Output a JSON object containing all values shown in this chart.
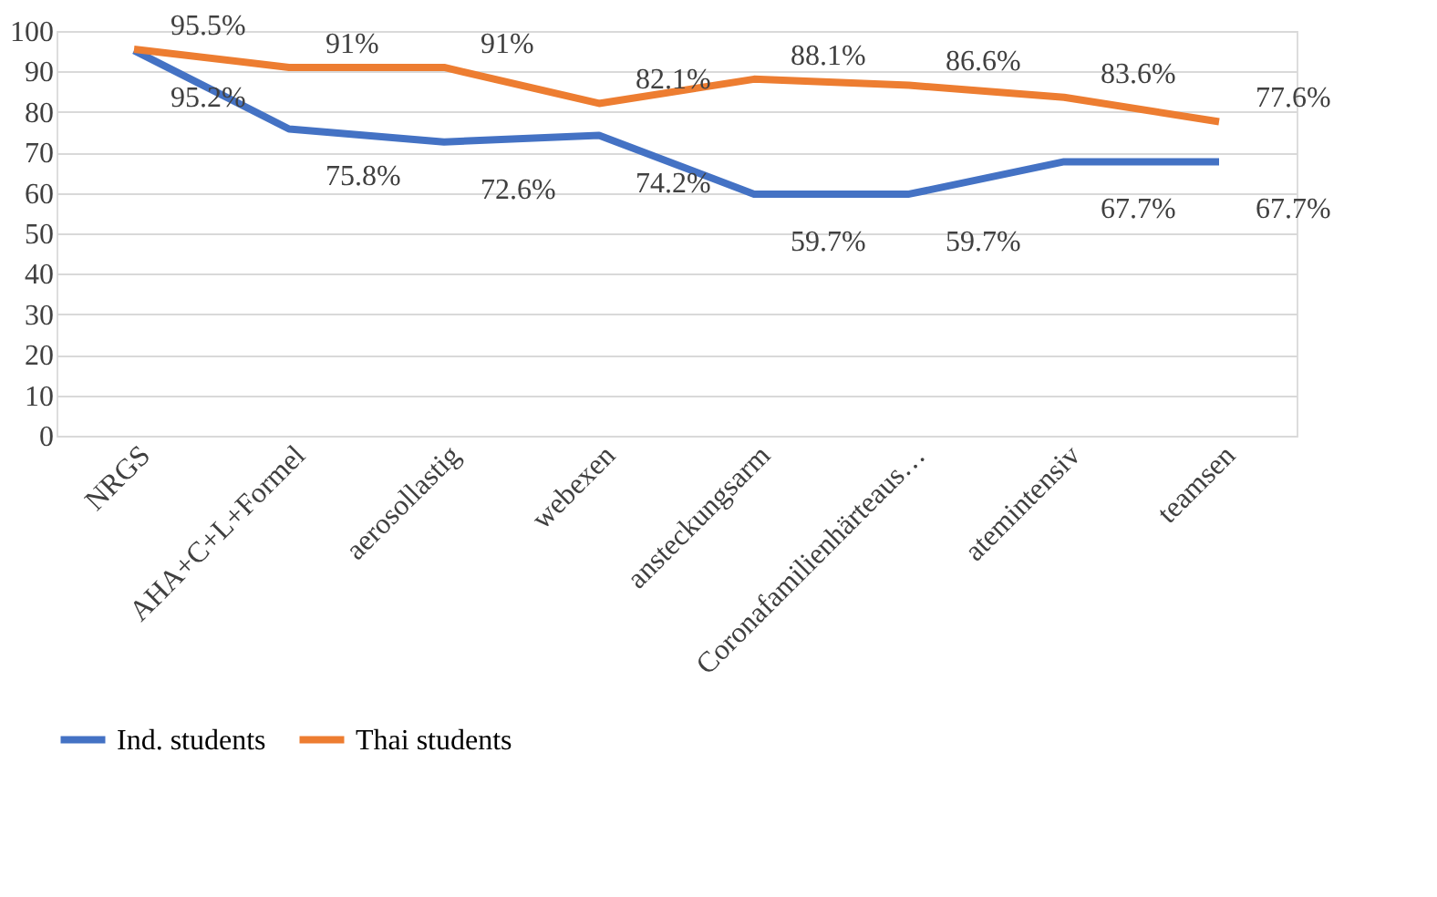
{
  "chart_data": {
    "type": "line",
    "categories": [
      "NRGS",
      "AHA+C+L+Formel",
      "aerosollastig",
      "webexen",
      "ansteckungsarm",
      "Coronafamilienhärteaus…",
      "atemintensiv",
      "teamsen"
    ],
    "series": [
      {
        "name": "Ind. students",
        "color": "#4472c4",
        "values": [
          95.2,
          75.8,
          72.6,
          74.2,
          59.7,
          59.7,
          67.7,
          67.7
        ],
        "value_labels": [
          "95.2%",
          "75.8%",
          "72.6%",
          "74.2%",
          "59.7%",
          "59.7%",
          "67.7%",
          "67.7%"
        ]
      },
      {
        "name": "Thai students",
        "color": "#ed7d31",
        "values": [
          95.5,
          91,
          91,
          82.1,
          88.1,
          86.6,
          83.6,
          77.6
        ],
        "value_labels": [
          "95.5%",
          "91%",
          "91%",
          "82.1%",
          "88.1%",
          "86.6%",
          "83.6%",
          "77.6%"
        ]
      }
    ],
    "ylim": [
      0,
      100
    ],
    "yticks": [
      0,
      10,
      20,
      30,
      40,
      50,
      60,
      70,
      80,
      90,
      100
    ],
    "grid": "y",
    "legend": "bottom",
    "marker": "none",
    "line_style": "solid"
  }
}
